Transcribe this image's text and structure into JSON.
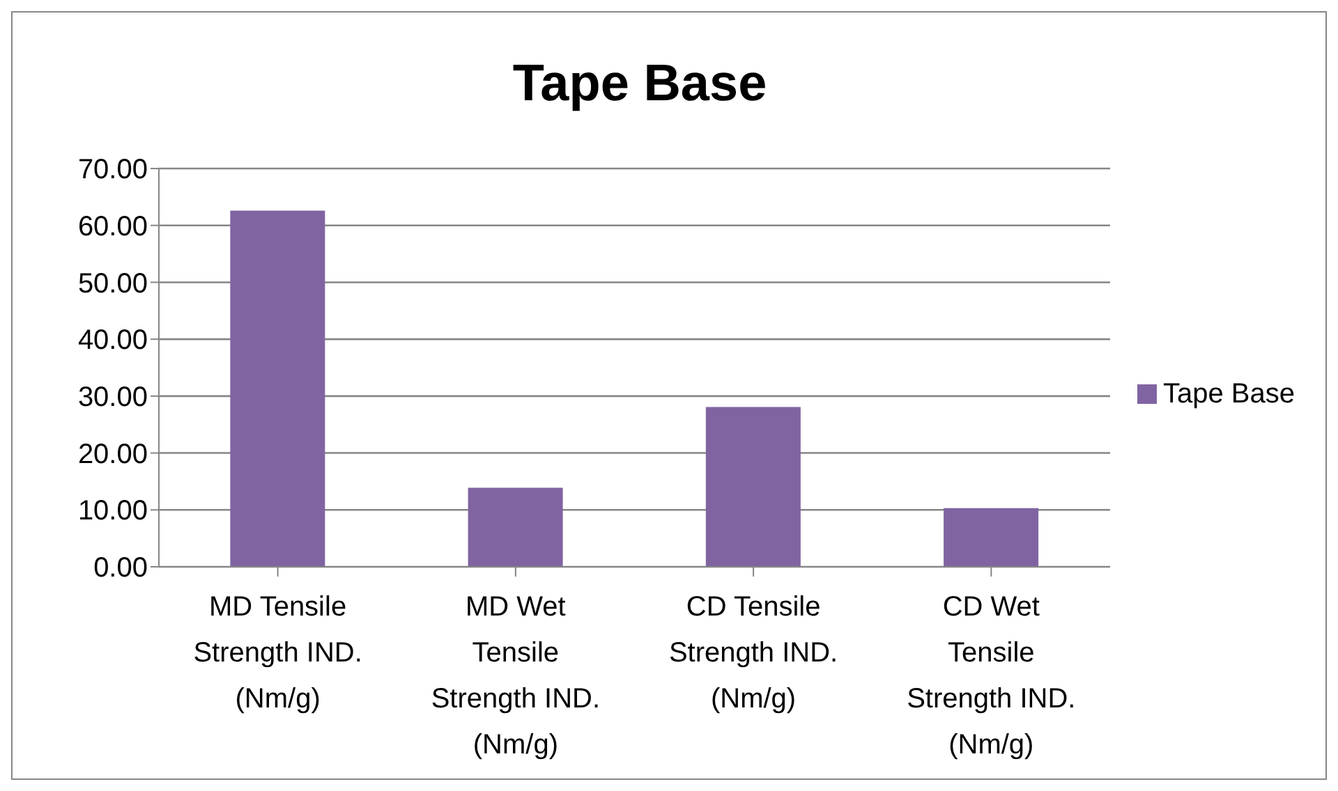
{
  "chart_data": {
    "type": "bar",
    "title": "Tape Base",
    "categories": [
      "MD Tensile Strength IND. (Nm/g)",
      "MD Wet Tensile Strength IND. (Nm/g)",
      "CD Tensile Strength IND. (Nm/g)",
      "CD Wet Tensile Strength IND. (Nm/g)"
    ],
    "series": [
      {
        "name": "Tape Base",
        "color": "#8064a2",
        "values": [
          62.6,
          13.9,
          28.1,
          10.3
        ]
      }
    ],
    "ylim": [
      0,
      70
    ],
    "yticks": [
      {
        "value": 0,
        "label": "0.00"
      },
      {
        "value": 10,
        "label": "10.00"
      },
      {
        "value": 20,
        "label": "20.00"
      },
      {
        "value": 30,
        "label": "30.00"
      },
      {
        "value": 40,
        "label": "40.00"
      },
      {
        "value": 50,
        "label": "50.00"
      },
      {
        "value": 60,
        "label": "60.00"
      },
      {
        "value": 70,
        "label": "70.00"
      }
    ],
    "grid": "y",
    "legend": "right"
  }
}
